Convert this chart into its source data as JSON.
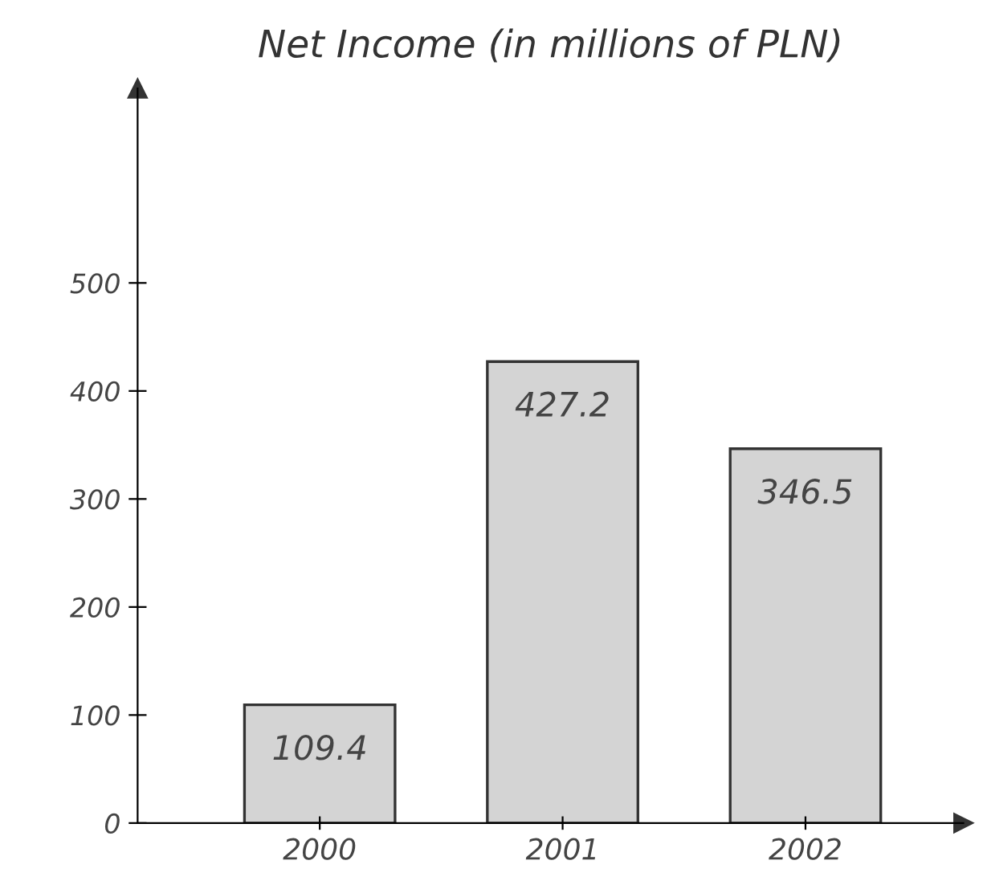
{
  "chart_data": {
    "type": "bar",
    "title": "Net Income (in millions of PLN)",
    "categories": [
      "2000",
      "2001",
      "2002"
    ],
    "values": [
      109.4,
      427.2,
      346.5
    ],
    "color": "#d4d4d4",
    "ylim": [
      0,
      680
    ],
    "yticks": [
      0,
      100,
      200,
      300,
      400,
      500
    ],
    "data_labels": true,
    "grid": false
  }
}
